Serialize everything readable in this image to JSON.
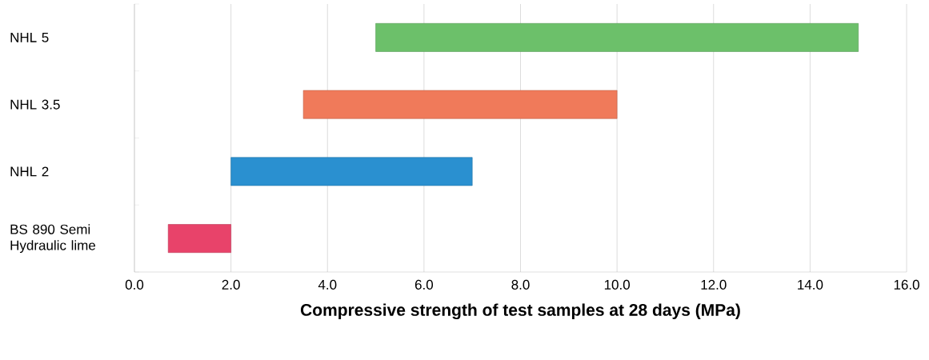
{
  "chart_data": {
    "type": "bar",
    "orientation": "horizontal",
    "categories": [
      "NHL 5",
      "NHL 3.5",
      "NHL 2",
      "BS 890 Semi Hydraulic lime"
    ],
    "base": [
      5.0,
      3.5,
      2.0,
      0.7
    ],
    "values": [
      10.0,
      6.5,
      5.0,
      1.3
    ],
    "colors": [
      "#6cc06a",
      "#f07a5a",
      "#2a90d0",
      "#e8436a"
    ],
    "xlabel": "Compressive strength of test samples at 28 days (MPa)",
    "xlim": [
      0,
      16
    ],
    "xticks": [
      {
        "value": 0,
        "label": "0.0"
      },
      {
        "value": 2,
        "label": "2.0"
      },
      {
        "value": 4,
        "label": "4.0"
      },
      {
        "value": 6,
        "label": "6.0"
      },
      {
        "value": 8,
        "label": "8.0"
      },
      {
        "value": 10,
        "label": "10.0"
      },
      {
        "value": 12,
        "label": "12.0"
      },
      {
        "value": 14,
        "label": "14.0"
      },
      {
        "value": 16,
        "label": "16.0"
      }
    ],
    "grid": "x"
  }
}
